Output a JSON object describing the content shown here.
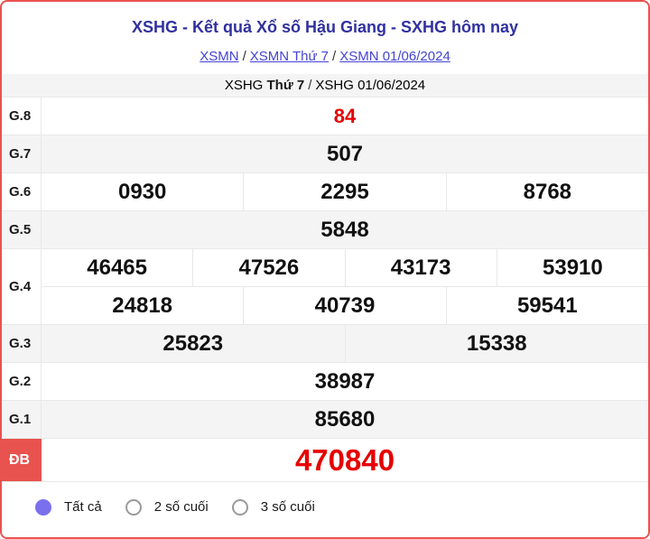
{
  "header": {
    "title": "XSHG - Kết quả Xổ số Hậu Giang - SXHG hôm nay",
    "breadcrumb1": {
      "separator": "/",
      "links": [
        {
          "label": "XSMN"
        },
        {
          "label": "XSMN Thứ 7"
        },
        {
          "label": "XSMN 01/06/2024"
        }
      ]
    },
    "breadcrumb2": {
      "separator": "/",
      "link1_blue": "XSHG",
      "link1_black": "Thứ 7",
      "link2": "XSHG 01/06/2024"
    }
  },
  "table": {
    "rows": [
      {
        "label": "G.8",
        "cells": [
          "84"
        ]
      },
      {
        "label": "G.7",
        "cells": [
          "507"
        ]
      },
      {
        "label": "G.6",
        "cells": [
          "0930",
          "2295",
          "8768"
        ]
      },
      {
        "label": "G.5",
        "cells": [
          "5848"
        ]
      },
      {
        "label": "G.4",
        "line1": [
          "46465",
          "47526",
          "43173",
          "53910"
        ],
        "line2": [
          "24818",
          "40739",
          "59541"
        ]
      },
      {
        "label": "G.3",
        "cells": [
          "25823",
          "15338"
        ]
      },
      {
        "label": "G.2",
        "cells": [
          "38987"
        ]
      },
      {
        "label": "G.1",
        "cells": [
          "85680"
        ]
      },
      {
        "label": "ĐB",
        "cells": [
          "470840"
        ]
      }
    ]
  },
  "filters": {
    "options": [
      {
        "label": "Tất cả",
        "selected": true
      },
      {
        "label": "2 số cuối",
        "selected": false
      },
      {
        "label": "3 số cuối",
        "selected": false
      }
    ]
  },
  "colors": {
    "card_border_red": "#e8524f",
    "number_red": "#e60000",
    "title_navy": "#31319f",
    "link_blue": "#4444d4",
    "radio_purple": "#7a70ee",
    "shaded_row_gray": "#f4f4f4",
    "db_badge_red": "#e8524f"
  }
}
